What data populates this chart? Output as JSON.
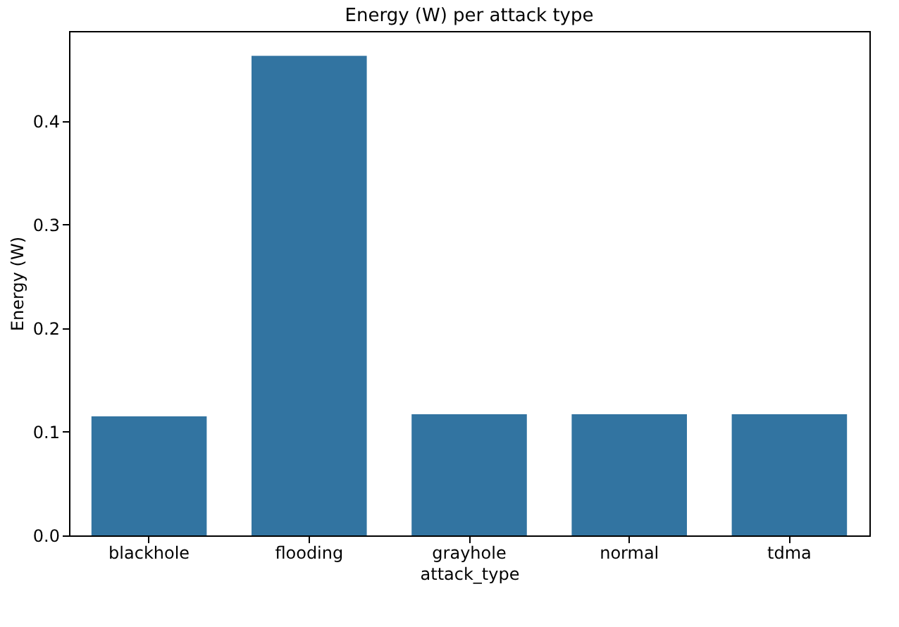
{
  "chart_data": {
    "type": "bar",
    "title": "Energy (W) per attack type",
    "xlabel": "attack_type",
    "ylabel": "Energy (W)",
    "categories": [
      "blackhole",
      "flooding",
      "grayhole",
      "normal",
      "tdma"
    ],
    "values": [
      0.115,
      0.463,
      0.117,
      0.117,
      0.117
    ],
    "color": "#3274a1",
    "ylim": [
      0,
      0.487
    ],
    "yticks": [
      {
        "value": 0,
        "label": "0.0"
      },
      0.1,
      0.2,
      0.3,
      0.4
    ],
    "grid": false
  }
}
